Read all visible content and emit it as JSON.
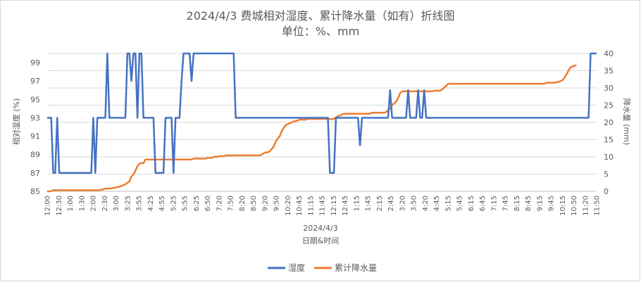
{
  "chart_data": {
    "type": "line",
    "title": "2024/4/3 费城相对湿度、累计降水量（如有）折线图",
    "subtitle": "单位：%、mm",
    "date_label": "2024/4/3",
    "xlabel": "日期&时间",
    "ylabel_left": "相对湿度 (%)",
    "ylabel_right": "降水量 (mm)",
    "ylim_left": [
      85,
      100
    ],
    "yticks_left": [
      85,
      87,
      89,
      91,
      93,
      95,
      97,
      99
    ],
    "ylim_right": [
      0,
      40
    ],
    "yticks_right": [
      0,
      5,
      10,
      15,
      20,
      25,
      30,
      35,
      40
    ],
    "x_start": "12:00",
    "x_step_minutes": 5,
    "x_end": "11:50",
    "x_tick_labels": [
      "12:00",
      "12:30",
      "1:00",
      "1:30",
      "2:00",
      "2:30",
      "3:00",
      "3:25",
      "3:55",
      "4:25",
      "4:55",
      "5:25",
      "5:55",
      "6:25",
      "6:50",
      "7:20",
      "7:50",
      "8:20",
      "8:50",
      "9:20",
      "9:50",
      "10:20",
      "10:45",
      "11:15",
      "11:45",
      "12:15",
      "12:45",
      "1:15",
      "1:45",
      "2:15",
      "2:45",
      "3:20",
      "3:50",
      "4:20",
      "4:45",
      "5:15",
      "5:45",
      "6:15",
      "6:45",
      "7:15",
      "7:45",
      "8:15",
      "8:45",
      "9:15",
      "9:45",
      "10:15",
      "10:50",
      "11:20",
      "11:50"
    ],
    "grid": true,
    "legend_position": "bottom",
    "series": [
      {
        "name": "湿度",
        "axis": "left",
        "color": "#4472C4",
        "values": [
          93,
          93,
          93,
          87,
          87,
          93,
          87,
          87,
          87,
          87,
          87,
          87,
          87,
          87,
          87,
          87,
          87,
          87,
          87,
          87,
          87,
          87,
          87,
          93,
          87,
          93,
          93,
          93,
          93,
          93,
          100,
          93,
          93,
          93,
          93,
          93,
          93,
          93,
          93,
          93,
          100,
          100,
          97,
          100,
          100,
          93,
          100,
          100,
          93,
          93,
          93,
          93,
          93,
          93,
          87,
          87,
          87,
          87,
          87,
          93,
          93,
          93,
          93,
          87,
          93,
          93,
          93,
          97,
          100,
          100,
          100,
          100,
          97,
          100,
          100,
          100,
          100,
          100,
          100,
          100,
          100,
          100,
          100,
          100,
          100,
          100,
          100,
          100,
          100,
          100,
          100,
          100,
          100,
          100,
          93,
          93,
          93,
          93,
          93,
          93,
          93,
          93,
          93,
          93,
          93,
          93,
          93,
          93,
          93,
          93,
          93,
          93,
          93,
          93,
          93,
          93,
          93,
          93,
          93,
          93,
          93,
          93,
          93,
          93,
          93,
          93,
          93,
          93,
          93,
          93,
          93,
          93,
          93,
          93,
          93,
          93,
          93,
          93,
          93,
          93,
          93,
          87,
          87,
          87,
          93,
          93,
          93,
          93,
          93,
          93,
          93,
          93,
          93,
          93,
          93,
          93,
          90,
          93,
          93,
          93,
          93,
          93,
          93,
          93,
          93,
          93,
          93,
          93,
          93,
          93,
          93,
          96,
          93,
          93,
          93,
          93,
          93,
          93,
          93,
          93,
          96,
          93,
          93,
          93,
          93,
          96,
          93,
          93,
          96,
          93,
          93,
          93,
          93,
          93,
          93,
          93,
          93,
          93,
          93,
          93,
          93,
          93,
          93,
          93,
          93,
          93,
          93,
          93,
          93,
          93,
          93,
          93,
          93,
          93,
          93,
          93,
          93,
          93,
          93,
          93,
          93,
          93,
          93,
          93,
          93,
          93,
          93,
          93,
          93,
          93,
          93,
          93,
          93,
          93,
          93,
          93,
          93,
          93,
          93,
          93,
          93,
          93,
          93,
          93,
          93,
          93,
          93,
          93,
          93,
          93,
          93,
          93,
          93,
          93,
          93,
          93,
          93,
          93,
          93,
          93,
          93,
          93,
          93,
          93,
          93,
          93,
          93,
          93,
          93,
          93,
          93,
          100,
          100,
          100,
          100
        ]
      },
      {
        "name": "累计降水量",
        "axis": "right",
        "color": "#ED7D31",
        "values": [
          0,
          0,
          0,
          0.3,
          0.3,
          0.3,
          0.3,
          0.3,
          0.3,
          0.3,
          0.3,
          0.3,
          0.3,
          0.3,
          0.3,
          0.3,
          0.3,
          0.3,
          0.3,
          0.3,
          0.3,
          0.3,
          0.3,
          0.3,
          0.3,
          0.3,
          0.3,
          0.5,
          0.5,
          0.8,
          0.8,
          0.8,
          0.8,
          1,
          1,
          1.3,
          1.3,
          1.5,
          1.8,
          2,
          2.5,
          2.8,
          4.3,
          4.8,
          6,
          7.3,
          8,
          8.2,
          8.2,
          9.2,
          9.2,
          9.2,
          9.2,
          9.2,
          9.2,
          9.2,
          9.2,
          9.2,
          9.2,
          9.2,
          9.2,
          9.2,
          9.2,
          9.2,
          9.2,
          9.2,
          9.2,
          9.2,
          9.2,
          9.2,
          9.2,
          9.2,
          9.2,
          9.5,
          9.5,
          9.5,
          9.5,
          9.5,
          9.5,
          9.5,
          9.7,
          9.7,
          9.7,
          10,
          10,
          10,
          10.2,
          10.2,
          10.2,
          10.4,
          10.4,
          10.4,
          10.4,
          10.4,
          10.4,
          10.4,
          10.4,
          10.4,
          10.4,
          10.4,
          10.4,
          10.4,
          10.4,
          10.4,
          10.4,
          10.4,
          10.4,
          10.7,
          11,
          11.3,
          11.3,
          11.6,
          12.3,
          13,
          14.5,
          15.3,
          16,
          17.5,
          18.5,
          19.2,
          19.5,
          19.8,
          20,
          20.3,
          20.3,
          20.6,
          20.8,
          20.8,
          20.8,
          20.8,
          21,
          21,
          21,
          21,
          21,
          21,
          21,
          21,
          21,
          21,
          21,
          21,
          21,
          21,
          21.5,
          21.8,
          22,
          22.3,
          22.5,
          22.5,
          22.5,
          22.5,
          22.5,
          22.5,
          22.5,
          22.5,
          22.5,
          22.5,
          22.5,
          22.5,
          22.5,
          22.5,
          22.8,
          22.8,
          22.8,
          22.8,
          22.8,
          22.8,
          22.8,
          23,
          23.5,
          24,
          25,
          25.5,
          26,
          27,
          28.5,
          29,
          29,
          29,
          29,
          29,
          29,
          29,
          29,
          29,
          29,
          29,
          29,
          29,
          29,
          29,
          29,
          29.2,
          29.2,
          29.2,
          29.2,
          29.6,
          30.1,
          30.6,
          31.2,
          31.2,
          31.2,
          31.2,
          31.2,
          31.2,
          31.2,
          31.2,
          31.2,
          31.2,
          31.2,
          31.2,
          31.2,
          31.2,
          31.2,
          31.2,
          31.2,
          31.2,
          31.2,
          31.2,
          31.2,
          31.2,
          31.2,
          31.2,
          31.2,
          31.2,
          31.2,
          31.2,
          31.2,
          31.2,
          31.2,
          31.2,
          31.2,
          31.2,
          31.2,
          31.2,
          31.2,
          31.2,
          31.2,
          31.2,
          31.2,
          31.2,
          31.2,
          31.2,
          31.2,
          31.2,
          31.2,
          31.2,
          31.2,
          31.5,
          31.5,
          31.5,
          31.5,
          31.5,
          31.7,
          31.7,
          32,
          32.2,
          33,
          34,
          35,
          36,
          36.2,
          36.5,
          36.5
        ]
      }
    ]
  }
}
